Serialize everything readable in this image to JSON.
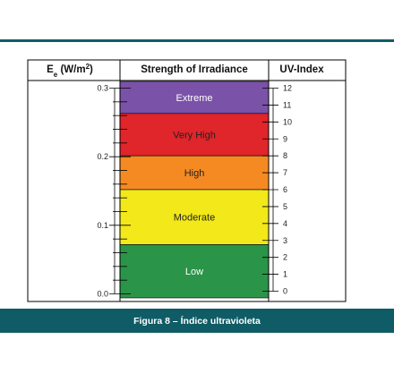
{
  "caption": "Figura 8 – Índice ultravioleta",
  "chart_data": {
    "type": "table",
    "headers": {
      "left_main": "E",
      "left_sub": "e",
      "left_unit": " (W/m",
      "left_sup": "2",
      "left_close": ")",
      "middle": "Strength of Irradiance",
      "right": "UV-Index"
    },
    "left_axis": {
      "ticks": [
        "0.3",
        "0.2",
        "0.1",
        "0.0"
      ],
      "values": [
        0.3,
        0.2,
        0.1,
        0.0
      ]
    },
    "right_axis": {
      "min": 0,
      "max": 12,
      "ticks": [
        "12",
        "11",
        "10",
        "9",
        "8",
        "7",
        "6",
        "5",
        "4",
        "3",
        "2",
        "1",
        "0"
      ]
    },
    "bands": [
      {
        "label": "Extreme",
        "from": 10.5,
        "to": 12,
        "color": "#7a52a8",
        "text_color": "#ffffff"
      },
      {
        "label": "Very High",
        "from": 8,
        "to": 10.5,
        "color": "#e0252b",
        "text_color": "#222222"
      },
      {
        "label": "High",
        "from": 6,
        "to": 8,
        "color": "#f58a22",
        "text_color": "#222222"
      },
      {
        "label": "Moderate",
        "from": 3,
        "to": 6,
        "color": "#f2e81a",
        "text_color": "#222222"
      },
      {
        "label": "Low",
        "from": 0,
        "to": 2.5,
        "color": "#2a9448",
        "text_color": "#ffffff"
      }
    ]
  }
}
